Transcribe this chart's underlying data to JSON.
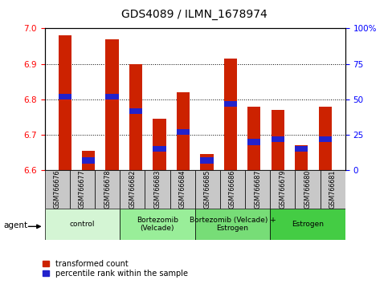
{
  "title": "GDS4089 / ILMN_1678974",
  "samples": [
    "GSM766676",
    "GSM766677",
    "GSM766678",
    "GSM766682",
    "GSM766683",
    "GSM766684",
    "GSM766685",
    "GSM766686",
    "GSM766687",
    "GSM766679",
    "GSM766680",
    "GSM766681"
  ],
  "transformed_count": [
    6.98,
    6.655,
    6.97,
    6.9,
    6.745,
    6.82,
    6.645,
    6.915,
    6.78,
    6.77,
    6.67,
    6.78
  ],
  "percentile_rank": [
    52,
    7,
    52,
    42,
    15,
    27,
    7,
    47,
    20,
    22,
    15,
    22
  ],
  "y_min": 6.6,
  "y_max": 7.0,
  "y_ticks": [
    6.6,
    6.7,
    6.8,
    6.9,
    7.0
  ],
  "y2_ticks": [
    0,
    25,
    50,
    75,
    100
  ],
  "groups": [
    {
      "label": "control",
      "start": 0,
      "end": 3,
      "color": "#d4f5d4"
    },
    {
      "label": "Bortezomib\n(Velcade)",
      "start": 3,
      "end": 6,
      "color": "#99ee99"
    },
    {
      "label": "Bortezomib (Velcade) +\nEstrogen",
      "start": 6,
      "end": 9,
      "color": "#77dd77"
    },
    {
      "label": "Estrogen",
      "start": 9,
      "end": 12,
      "color": "#44cc44"
    }
  ],
  "bar_color": "#cc2200",
  "percentile_color": "#2222cc",
  "bar_width": 0.55,
  "blue_bar_width": 0.55,
  "legend_red": "transformed count",
  "legend_blue": "percentile rank within the sample",
  "agent_label": "agent",
  "tick_area_color": "#c8c8c8",
  "grid_lines": [
    6.7,
    6.8,
    6.9
  ]
}
